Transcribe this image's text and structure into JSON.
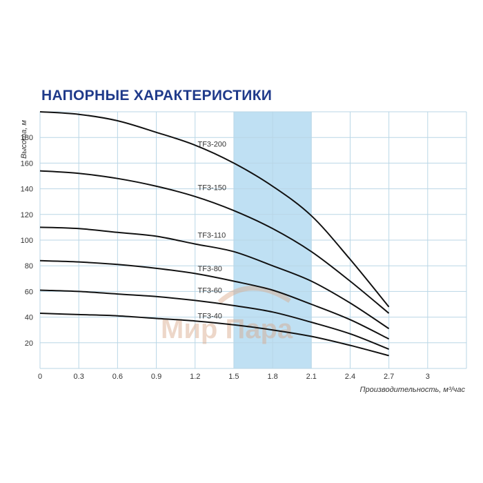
{
  "chart_data": {
    "type": "line",
    "title": "НАПОРНЫЕ ХАРАКТЕРИСТИКИ",
    "xlabel": "Производительность, м³/час",
    "ylabel": "Высота, м",
    "xlim": [
      0,
      3.3
    ],
    "ylim": [
      0,
      200
    ],
    "x_ticks": [
      "0",
      "0.3",
      "0.6",
      "0.9",
      "1.2",
      "1.5",
      "1.8",
      "2.1",
      "2.4",
      "2.7",
      "3"
    ],
    "y_ticks": [
      "20",
      "40",
      "60",
      "80",
      "100",
      "120",
      "140",
      "160",
      "180"
    ],
    "highlight_band": {
      "x_from": 1.5,
      "x_to": 2.1,
      "color": "#bfe0f3"
    },
    "grid": true,
    "series": [
      {
        "name": "TF3-200",
        "x": [
          0,
          0.3,
          0.6,
          0.9,
          1.2,
          1.5,
          1.8,
          2.1,
          2.4,
          2.7
        ],
        "y": [
          200,
          198,
          193,
          184,
          174,
          160,
          142,
          119,
          85,
          48
        ]
      },
      {
        "name": "TF3-150",
        "x": [
          0,
          0.3,
          0.6,
          0.9,
          1.2,
          1.5,
          1.8,
          2.1,
          2.4,
          2.7
        ],
        "y": [
          154,
          152,
          148,
          142,
          134,
          123,
          109,
          91,
          68,
          43
        ]
      },
      {
        "name": "TF3-110",
        "x": [
          0,
          0.3,
          0.6,
          0.9,
          1.2,
          1.5,
          1.8,
          2.1,
          2.4,
          2.7
        ],
        "y": [
          110,
          109,
          106,
          103,
          97,
          91,
          80,
          68,
          51,
          31
        ]
      },
      {
        "name": "TF3-80",
        "x": [
          0,
          0.3,
          0.6,
          0.9,
          1.2,
          1.5,
          1.8,
          2.1,
          2.4,
          2.7
        ],
        "y": [
          84,
          83,
          81,
          78,
          74,
          68,
          61,
          50,
          38,
          23
        ]
      },
      {
        "name": "TF3-60",
        "x": [
          0,
          0.3,
          0.6,
          0.9,
          1.2,
          1.5,
          1.8,
          2.1,
          2.4,
          2.7
        ],
        "y": [
          61,
          60,
          58,
          56,
          53,
          49,
          44,
          36,
          27,
          15
        ]
      },
      {
        "name": "TF3-40",
        "x": [
          0,
          0.3,
          0.6,
          0.9,
          1.2,
          1.5,
          1.8,
          2.1,
          2.4,
          2.7
        ],
        "y": [
          43,
          42,
          41,
          39,
          37,
          34,
          30,
          25,
          18,
          10
        ]
      }
    ],
    "series_label_x": [
      1.22,
      1.22,
      1.22,
      1.22,
      1.22,
      1.22
    ],
    "series_label_y": [
      175,
      141,
      104,
      78,
      61,
      41
    ]
  },
  "watermark": {
    "text": "Мир Пара",
    "color": "#d9a88a"
  }
}
